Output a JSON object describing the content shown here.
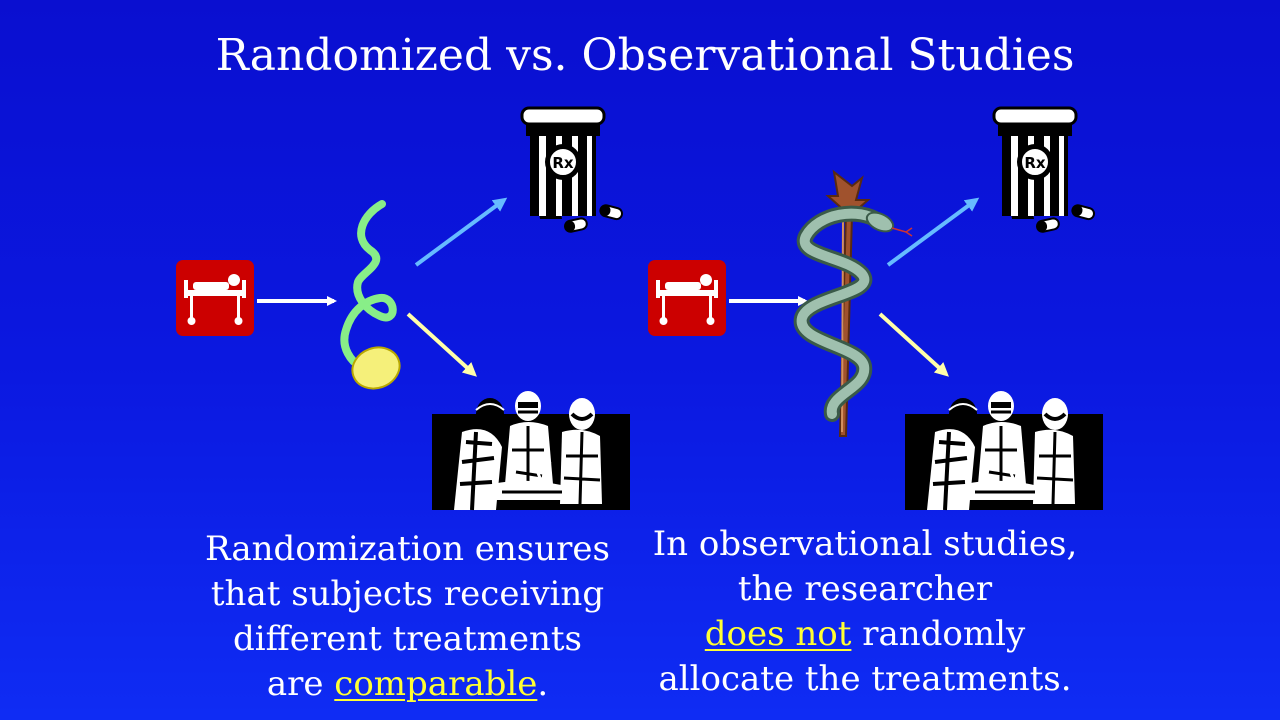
{
  "slide": {
    "title": "Randomized vs. Observational Studies",
    "left_caption": {
      "line1": "Randomization ensures",
      "line2": "that subjects receiving",
      "line3": "different treatments",
      "line4_before": "are ",
      "line4_highlight": "comparable",
      "line4_after": "."
    },
    "right_caption": {
      "line1": "In observational studies,",
      "line2": "the researcher",
      "line3_highlight": "does not",
      "line3_after": " randomly",
      "line4": "allocate the treatments."
    },
    "rx_label": "Rx"
  },
  "colors": {
    "background": "#0b18e0",
    "highlight": "#ffff33",
    "bed_tile": "#cc0000",
    "arrow_to_drug": "#66bbff",
    "arrow_to_surgery": "#ffffaa",
    "coin": "#f5f07a",
    "spring": "#88ee88",
    "staff": "#a0522d",
    "snake": "#88aa99"
  },
  "icons": [
    "hospital-bed-icon",
    "coin-toss-icon",
    "prescription-bottle-icon",
    "surgery-team-icon",
    "rod-of-asclepius-icon"
  ]
}
